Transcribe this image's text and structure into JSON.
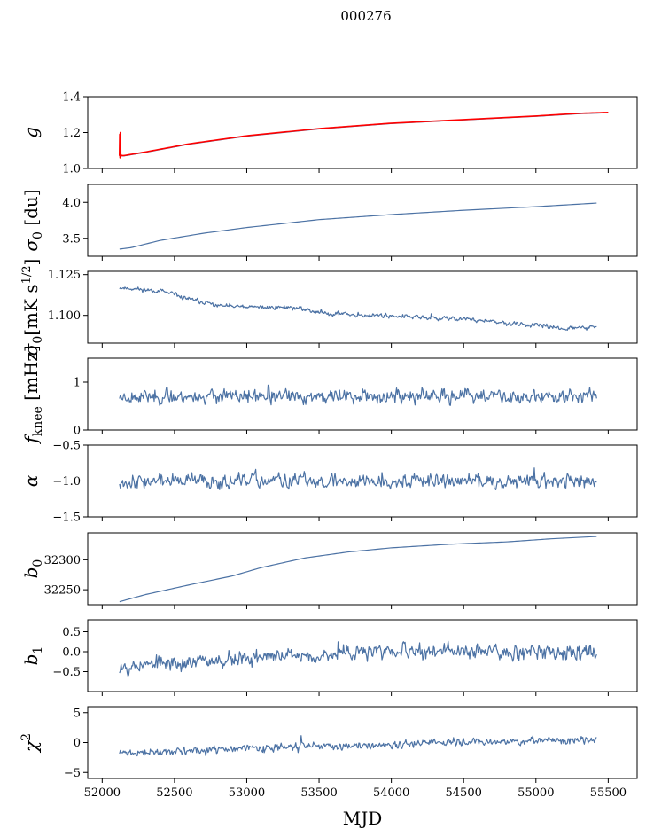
{
  "title": "000276",
  "chart_data": {
    "type": "line",
    "shared_x": {
      "label": "MJD",
      "lim": [
        51900,
        55700
      ],
      "ticks": [
        52000,
        52500,
        53000,
        53500,
        54000,
        54500,
        55000,
        55500
      ],
      "tick_labels": [
        "52000",
        "52500",
        "53000",
        "53500",
        "54000",
        "54500",
        "55000",
        "55500"
      ]
    },
    "x_range": [
      52120,
      55420
    ],
    "line_color": "#4c72a4",
    "panels": [
      {
        "id": "g",
        "ylabel_parts": [
          "g"
        ],
        "ylim": [
          1.0,
          1.4
        ],
        "ticks": [
          1.0,
          1.2,
          1.4
        ],
        "tick_labels": [
          "1.0",
          "1.2",
          "1.4"
        ],
        "series": [
          {
            "kind": "smooth",
            "color": "#4c72a4",
            "x": [
              52120,
              52150,
              52300,
              52600,
              53000,
              53500,
              54000,
              54500,
              55000,
              55300,
              55500
            ],
            "y": [
              1.07,
              1.07,
              1.09,
              1.135,
              1.18,
              1.22,
              1.25,
              1.27,
              1.29,
              1.305,
              1.31
            ]
          },
          {
            "kind": "smooth",
            "color": "#ff0000",
            "x": [
              52120,
              52150,
              52300,
              52600,
              53000,
              53500,
              54000,
              54500,
              55000,
              55300,
              55500
            ],
            "y": [
              1.072,
              1.072,
              1.092,
              1.137,
              1.182,
              1.222,
              1.252,
              1.272,
              1.292,
              1.307,
              1.312
            ]
          },
          {
            "kind": "spike",
            "color": "#ff0000",
            "x": [
              52120,
              52122,
              52124,
              52126,
              52128,
              52130
            ],
            "y": [
              1.07,
              1.19,
              1.06,
              1.2,
              1.07,
              1.08
            ]
          }
        ]
      },
      {
        "id": "sigma0-du",
        "ylabel_parts": [
          "σ",
          "0",
          " [du]"
        ],
        "ylim": [
          3.25,
          4.25
        ],
        "ticks": [
          3.5,
          4.0
        ],
        "tick_labels": [
          "3.5",
          "4.0"
        ],
        "series": [
          {
            "kind": "smooth",
            "color": "#4c72a4",
            "x": [
              52120,
              52200,
              52400,
              52700,
              53000,
              53500,
              54000,
              54500,
              55000,
              55420
            ],
            "y": [
              3.35,
              3.37,
              3.47,
              3.57,
              3.65,
              3.76,
              3.83,
              3.89,
              3.94,
              3.99
            ]
          }
        ]
      },
      {
        "id": "sigma0-mk",
        "ylabel_parts": [
          "σ",
          "0",
          "[mK s",
          "1/2",
          "]"
        ],
        "ylim": [
          1.083,
          1.127
        ],
        "ticks": [
          1.1,
          1.125
        ],
        "tick_labels": [
          "1.100",
          "1.125"
        ],
        "series": [
          {
            "kind": "noisy",
            "color": "#4c72a4",
            "x": [
              52120,
              52400,
              52600,
              52800,
              53000,
              53300,
              53500,
              53800,
              54000,
              54300,
              54500,
              54800,
              55000,
              55200,
              55420
            ],
            "y": [
              1.117,
              1.115,
              1.11,
              1.106,
              1.105,
              1.105,
              1.102,
              1.1,
              1.1,
              1.098,
              1.098,
              1.095,
              1.094,
              1.092,
              1.093
            ],
            "amplitude": 0.0012,
            "seed": 11
          }
        ]
      },
      {
        "id": "fknee",
        "ylabel_parts": [
          "f",
          "knee",
          " [mHz]"
        ],
        "ylim": [
          0.0,
          1.5
        ],
        "ticks": [
          0,
          1
        ],
        "tick_labels": [
          "0",
          "1"
        ],
        "series": [
          {
            "kind": "noisy",
            "color": "#4c72a4",
            "x": [
              52120,
              55420
            ],
            "y": [
              0.7,
              0.7
            ],
            "amplitude": 0.13,
            "seed": 23
          }
        ]
      },
      {
        "id": "alpha",
        "ylabel_parts": [
          "α"
        ],
        "ylim": [
          -1.5,
          -0.5
        ],
        "ticks": [
          -1.5,
          -1.0,
          -0.5
        ],
        "tick_labels": [
          "−1.5",
          "−1.0",
          "−0.5"
        ],
        "series": [
          {
            "kind": "noisy",
            "color": "#4c72a4",
            "x": [
              52120,
              55420
            ],
            "y": [
              -1.0,
              -1.0
            ],
            "amplitude": 0.09,
            "seed": 37
          }
        ]
      },
      {
        "id": "b0",
        "ylabel_parts": [
          "b",
          "0"
        ],
        "ylim": [
          32225,
          32345
        ],
        "ticks": [
          32250,
          32300
        ],
        "tick_labels": [
          "32250",
          "32300"
        ],
        "series": [
          {
            "kind": "smooth",
            "color": "#4c72a4",
            "x": [
              52120,
              52300,
              52600,
              52900,
              53100,
              53400,
              53700,
              54000,
              54400,
              54800,
              55100,
              55420
            ],
            "y": [
              32230,
              32242,
              32258,
              32273,
              32287,
              32303,
              32313,
              32320,
              32326,
              32330,
              32335,
              32339
            ]
          }
        ]
      },
      {
        "id": "b1",
        "ylabel_parts": [
          "b",
          "1"
        ],
        "ylim": [
          -1.0,
          0.8
        ],
        "ticks": [
          -0.5,
          0.0,
          0.5
        ],
        "tick_labels": [
          "−0.5",
          "0.0",
          "0.5"
        ],
        "series": [
          {
            "kind": "noisy",
            "color": "#4c72a4",
            "x": [
              52120,
              52500,
              53000,
              54000,
              55000,
              55420
            ],
            "y": [
              -0.35,
              -0.3,
              -0.15,
              0.0,
              0.02,
              0.0
            ],
            "amplitude": 0.17,
            "seed": 53
          }
        ]
      },
      {
        "id": "chi2",
        "ylabel_parts": [
          "χ",
          "2"
        ],
        "ylim": [
          -6,
          6
        ],
        "ticks": [
          -5,
          0,
          5
        ],
        "tick_labels": [
          "−5",
          "0",
          "5"
        ],
        "series": [
          {
            "kind": "noisy",
            "color": "#4c72a4",
            "x": [
              52120,
              52500,
              53000,
              54000,
              55000,
              55420
            ],
            "y": [
              -1.8,
              -1.5,
              -1.0,
              -0.3,
              0.3,
              0.4
            ],
            "amplitude": 0.55,
            "seed": 71
          }
        ]
      }
    ]
  }
}
